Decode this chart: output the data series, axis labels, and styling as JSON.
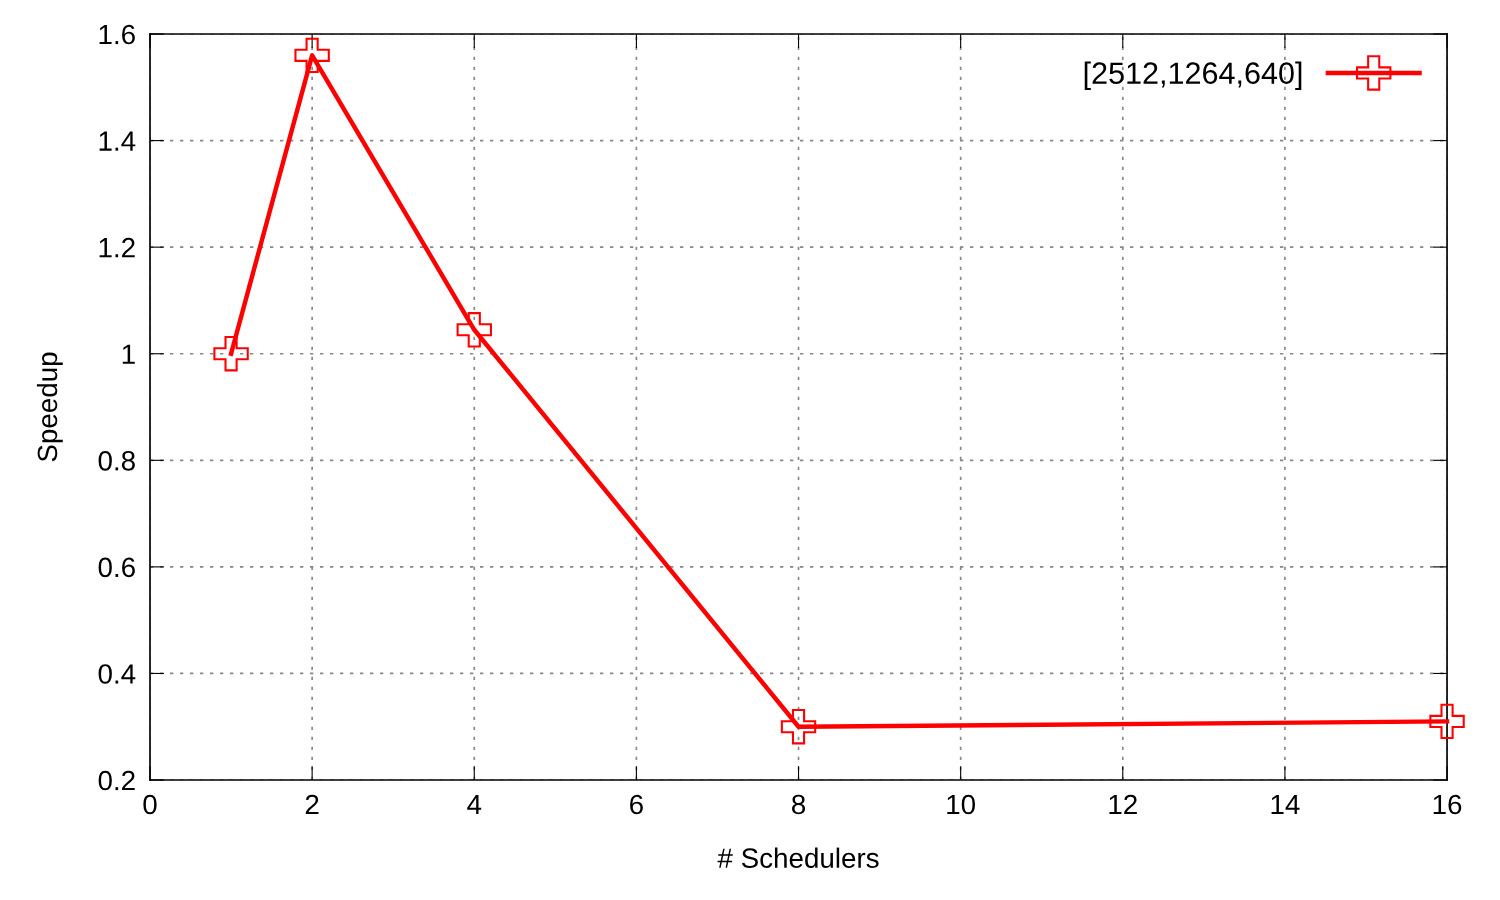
{
  "chart_data": {
    "type": "line",
    "xlabel": "# Schedulers",
    "ylabel": "Speedup",
    "x": [
      1,
      2,
      4,
      8,
      16
    ],
    "series": [
      {
        "name": "[2512,1264,640]",
        "color": "#ff0000",
        "values": [
          1.0,
          1.56,
          1.045,
          0.3,
          0.31
        ]
      }
    ],
    "xlim": [
      0,
      16
    ],
    "xticks": [
      0,
      2,
      4,
      6,
      8,
      10,
      12,
      14,
      16
    ],
    "ylim": [
      0.2,
      1.6
    ],
    "yticks": [
      {
        "value": 0.2,
        "label": "0.2"
      },
      {
        "value": 0.4,
        "label": "0.4"
      },
      {
        "value": 0.6,
        "label": "0.6"
      },
      {
        "value": 0.8,
        "label": "0.8"
      },
      {
        "value": 1,
        "label": "1"
      },
      {
        "value": 1.2,
        "label": "1.2"
      },
      {
        "value": 1.4,
        "label": "1.4"
      },
      {
        "value": 1.6,
        "label": "1.6"
      }
    ],
    "grid": true,
    "legend": "top right",
    "marker": "cross",
    "line_style": "solid"
  }
}
